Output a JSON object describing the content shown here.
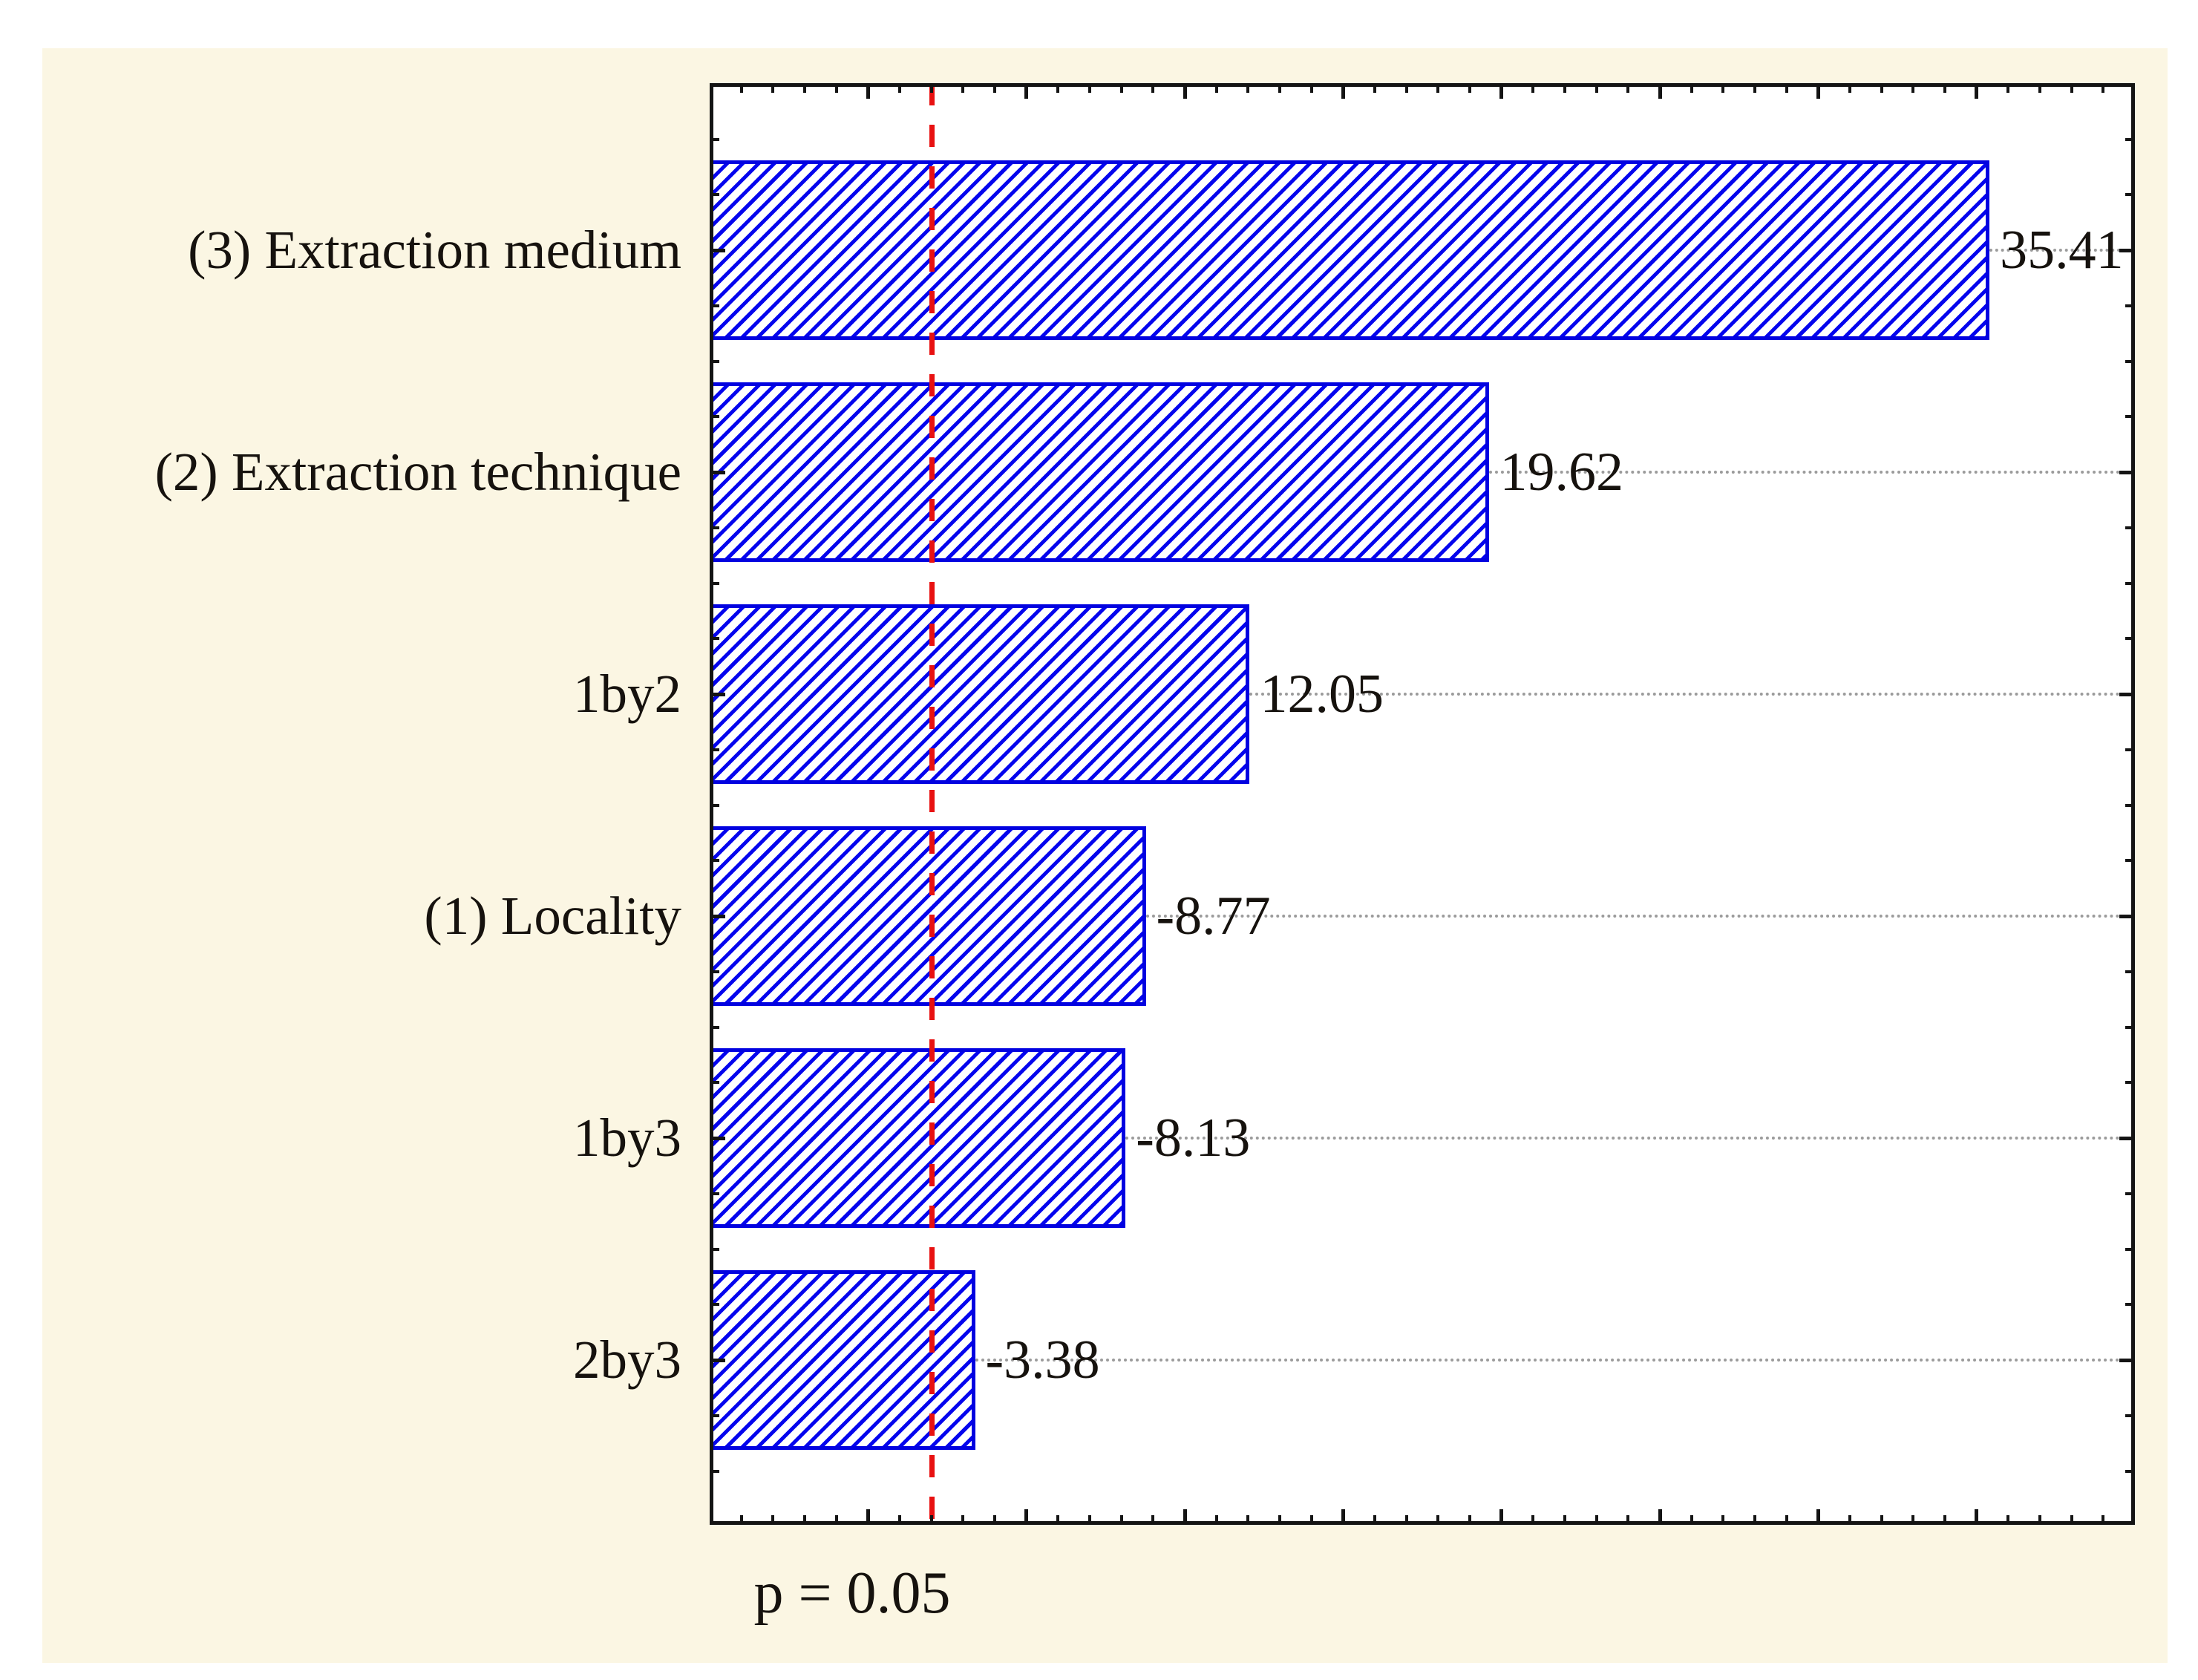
{
  "chart_data": {
    "type": "bar",
    "orientation": "horizontal",
    "title": "",
    "subtitle": "",
    "categories": [
      "(3) Extraction medium",
      "(2) Extraction technique",
      "1by2",
      "(1) Locality",
      "1by3",
      "2by3"
    ],
    "values": [
      35.41,
      19.62,
      12.05,
      -8.77,
      -8.13,
      -3.38
    ],
    "bar_lengths_abs": [
      35.41,
      19.62,
      12.05,
      8.77,
      8.13,
      3.38
    ],
    "value_labels": [
      "35.41",
      "19.62",
      "12.05",
      "-8.77",
      "-8.13",
      "-3.38"
    ],
    "xlabel": "",
    "ylabel": "",
    "xlim": [
      -5,
      40
    ],
    "x_major_tick_step": 5,
    "x_minor_tick_step": 1,
    "grid": "horizontal dotted gridlines at bar centers, drawn from bar end to right edge",
    "legend": null,
    "reference_line": {
      "label": "p = 0.05",
      "value": 2.03,
      "style": "dashed"
    },
    "bar_style": "diagonal blue hatch with blue border",
    "colors": {
      "bar_hatch": "#0404ee",
      "bar_border": "#0202e0",
      "reference_line": "#e81111",
      "gridline": "#9b9b9b",
      "plot_background": "#ffffff",
      "figure_background": "#fbf6e3",
      "axis": "#141414",
      "text": "#16120e"
    }
  }
}
